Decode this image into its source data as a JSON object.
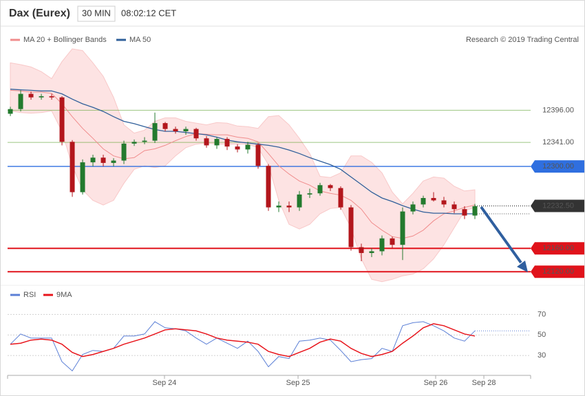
{
  "header": {
    "title": "Dax (Eurex)",
    "interval": "30 MIN",
    "time": "08:02:12 CET"
  },
  "chart_data": [
    {
      "type": "candlestick",
      "credit": "Research © 2019 Trading Central",
      "up_color": "#237a2e",
      "down_color": "#b3161c",
      "xlim": [
        -0.27,
        50.4
      ],
      "ylim": [
        12078,
        12501
      ],
      "open": [
        12390,
        12398,
        12424,
        12418,
        12420,
        12418,
        12342,
        12256,
        12307,
        12315,
        12306,
        12310,
        12339,
        12342,
        12344,
        12374,
        12364,
        12360,
        12364,
        12348,
        12336,
        12347,
        12334,
        12329,
        12337,
        12301,
        12230,
        12233,
        12230,
        12252,
        12254,
        12268,
        12263,
        12230,
        12162,
        12152,
        12155,
        12177,
        12166,
        12223,
        12235,
        12246,
        12242,
        12235,
        12227,
        12216
      ],
      "high": [
        12402,
        12430,
        12428,
        12424,
        12424,
        12420,
        12345,
        12312,
        12320,
        12320,
        12314,
        12344,
        12346,
        12350,
        12392,
        12376,
        12368,
        12368,
        12366,
        12352,
        12350,
        12350,
        12338,
        12342,
        12340,
        12304,
        12240,
        12240,
        12258,
        12262,
        12272,
        12270,
        12266,
        12234,
        12168,
        12160,
        12182,
        12180,
        12230,
        12240,
        12250,
        12256,
        12248,
        12240,
        12232,
        12236
      ],
      "low": [
        12386,
        12394,
        12414,
        12414,
        12414,
        12336,
        12248,
        12252,
        12300,
        12300,
        12300,
        12304,
        12335,
        12338,
        12340,
        12360,
        12356,
        12354,
        12344,
        12332,
        12330,
        12328,
        12324,
        12322,
        12296,
        12224,
        12222,
        12222,
        12224,
        12246,
        12250,
        12258,
        12226,
        12156,
        12138,
        12145,
        12148,
        12160,
        12140,
        12218,
        12230,
        12240,
        12230,
        12220,
        12210,
        12210
      ],
      "close": [
        12398,
        12424,
        12418,
        12420,
        12418,
        12342,
        12256,
        12307,
        12315,
        12306,
        12310,
        12339,
        12342,
        12344,
        12374,
        12364,
        12360,
        12364,
        12348,
        12336,
        12347,
        12334,
        12329,
        12337,
        12301,
        12230,
        12233,
        12230,
        12252,
        12254,
        12268,
        12263,
        12230,
        12162,
        12152,
        12155,
        12177,
        12166,
        12223,
        12235,
        12246,
        12242,
        12235,
        12227,
        12216,
        12232
      ],
      "series": [
        {
          "name": "MA 20 + Bollinger Bands",
          "color": "#f08c8c",
          "values": [
            12430,
            12429,
            12427,
            12427,
            12425,
            12407,
            12385,
            12365,
            12348,
            12330,
            12318,
            12313,
            12315,
            12327,
            12330,
            12336,
            12344,
            12351,
            12356,
            12355,
            12354,
            12354,
            12350,
            12348,
            12342,
            12322,
            12301,
            12287,
            12275,
            12268,
            12258,
            12254,
            12251,
            12242,
            12227,
            12204,
            12191,
            12180,
            12177,
            12181,
            12191,
            12207,
            12219,
            12224,
            12230,
            12234
          ],
          "upper": [
            12477,
            12474,
            12470,
            12462,
            12450,
            12479,
            12501,
            12498,
            12477,
            12454,
            12418,
            12371,
            12357,
            12362,
            12377,
            12383,
            12383,
            12377,
            12374,
            12371,
            12375,
            12374,
            12369,
            12368,
            12365,
            12385,
            12387,
            12371,
            12348,
            12322,
            12283,
            12281,
            12289,
            12318,
            12318,
            12307,
            12289,
            12256,
            12236,
            12254,
            12275,
            12282,
            12280,
            12266,
            12258,
            12260
          ],
          "lower": [
            12395,
            12392,
            12391,
            12392,
            12395,
            12360,
            12301,
            12260,
            12242,
            12234,
            12242,
            12271,
            12295,
            12301,
            12298,
            12301,
            12318,
            12332,
            12338,
            12340,
            12338,
            12338,
            12338,
            12338,
            12332,
            12303,
            12242,
            12201,
            12193,
            12201,
            12219,
            12228,
            12230,
            12195,
            12142,
            12107,
            12103,
            12107,
            12113,
            12116,
            12125,
            12142,
            12166,
            12195,
            12224,
            12230
          ]
        },
        {
          "name": "MA 50",
          "color": "#2f5f9a",
          "values": [
            12432,
            12431,
            12430,
            12429,
            12429,
            12424,
            12415,
            12407,
            12401,
            12394,
            12385,
            12377,
            12373,
            12368,
            12363,
            12360,
            12360,
            12358,
            12356,
            12354,
            12350,
            12345,
            12342,
            12340,
            12338,
            12336,
            12333,
            12328,
            12322,
            12315,
            12309,
            12303,
            12295,
            12282,
            12269,
            12256,
            12246,
            12240,
            12233,
            12227,
            12222,
            12220,
            12220,
            12219,
            12219,
            12219
          ]
        }
      ],
      "levels": [
        {
          "value": 12396,
          "label": "12396.00",
          "color": "#5aa02c",
          "box": false,
          "dash": false
        },
        {
          "value": 12341,
          "label": "12341.00",
          "color": "#5aa02c",
          "box": false,
          "dash": false
        },
        {
          "value": 12300,
          "label": "12300.00",
          "color": "#2f6fe0",
          "box": true,
          "dash": false
        },
        {
          "value": 12232.5,
          "label": "12232.50",
          "color": "#333333",
          "box": true,
          "dash": true
        },
        {
          "value": 12160,
          "label": "12160.00",
          "color": "#e0131b",
          "box": true,
          "dash": false
        },
        {
          "value": 12120,
          "label": "12120.00",
          "color": "#e0131b",
          "box": true,
          "dash": false
        }
      ]
    },
    {
      "type": "line",
      "xlim": [
        -0.27,
        50.4
      ],
      "ylim": [
        14,
        81
      ],
      "yticks": [
        30,
        50,
        70
      ],
      "xticks": [
        {
          "value": 14.93,
          "label": "Sep 24"
        },
        {
          "value": 27.87,
          "label": "Sep 25"
        },
        {
          "value": 41.2,
          "label": "Sep 26"
        },
        {
          "value": 45.87,
          "label": "Sep 28"
        }
      ],
      "series": [
        {
          "name": "RSI",
          "color": "#5b7fd6",
          "values": [
            41,
            51,
            47,
            47,
            47,
            24,
            15,
            31,
            35,
            34,
            37,
            49,
            49,
            51,
            63,
            57,
            56,
            54,
            47,
            41,
            47,
            42,
            37,
            44,
            34,
            19,
            29,
            27,
            44,
            45,
            47,
            45,
            35,
            24,
            26,
            27,
            37,
            34,
            59,
            62,
            63,
            59,
            54,
            47,
            44,
            54
          ]
        },
        {
          "name": "9MA",
          "color": "#e8141b",
          "values": [
            41,
            42,
            45,
            46,
            45,
            41,
            33,
            29,
            31,
            34,
            37,
            41,
            44,
            47,
            51,
            55,
            56,
            55,
            54,
            51,
            47,
            45,
            44,
            43,
            41,
            34,
            31,
            29,
            33,
            37,
            43,
            46,
            44,
            37,
            32,
            29,
            31,
            34,
            42,
            49,
            57,
            61,
            59,
            55,
            51,
            49
          ]
        }
      ]
    }
  ]
}
